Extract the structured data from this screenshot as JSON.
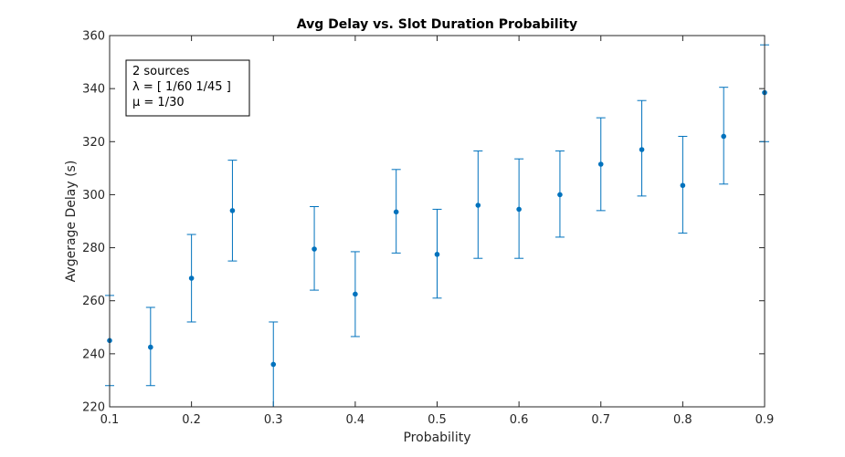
{
  "chart_data": {
    "type": "scatter",
    "title": "Avg Delay vs. Slot Duration Probability",
    "xlabel": "Probability",
    "ylabel": "Avgerage Delay (s)",
    "xlim": [
      0.1,
      0.9
    ],
    "ylim": [
      220,
      360
    ],
    "x_ticks": [
      0.1,
      0.2,
      0.3,
      0.4,
      0.5,
      0.6,
      0.7,
      0.8,
      0.9
    ],
    "x_tick_labels": [
      "0.1",
      "0.2",
      "0.3",
      "0.4",
      "0.5",
      "0.6",
      "0.7",
      "0.8",
      "0.9"
    ],
    "y_ticks": [
      220,
      240,
      260,
      280,
      300,
      320,
      340,
      360
    ],
    "y_tick_labels": [
      "220",
      "240",
      "260",
      "280",
      "300",
      "320",
      "340",
      "360"
    ],
    "grid": false,
    "legend_placement": "top-left",
    "annotation_lines": [
      "2 sources",
      "λ = [ 1/60 1/45 ]",
      "μ = 1/30"
    ],
    "marker_color": "#0072BD",
    "points": [
      {
        "x": 0.1,
        "y": 245.0,
        "lower": 228.0,
        "upper": 262.0
      },
      {
        "x": 0.15,
        "y": 242.5,
        "lower": 228.0,
        "upper": 257.5
      },
      {
        "x": 0.2,
        "y": 268.5,
        "lower": 252.0,
        "upper": 285.0
      },
      {
        "x": 0.25,
        "y": 294.0,
        "lower": 275.0,
        "upper": 313.0
      },
      {
        "x": 0.3,
        "y": 236.0,
        "lower": 220.0,
        "upper": 252.0
      },
      {
        "x": 0.35,
        "y": 279.5,
        "lower": 264.0,
        "upper": 295.5
      },
      {
        "x": 0.4,
        "y": 262.5,
        "lower": 246.5,
        "upper": 278.5
      },
      {
        "x": 0.45,
        "y": 293.5,
        "lower": 278.0,
        "upper": 309.5
      },
      {
        "x": 0.5,
        "y": 277.5,
        "lower": 261.0,
        "upper": 294.5
      },
      {
        "x": 0.55,
        "y": 296.0,
        "lower": 276.0,
        "upper": 316.5
      },
      {
        "x": 0.6,
        "y": 294.5,
        "lower": 276.0,
        "upper": 313.5
      },
      {
        "x": 0.65,
        "y": 300.0,
        "lower": 284.0,
        "upper": 316.5
      },
      {
        "x": 0.7,
        "y": 311.5,
        "lower": 294.0,
        "upper": 329.0
      },
      {
        "x": 0.75,
        "y": 317.0,
        "lower": 299.5,
        "upper": 335.5
      },
      {
        "x": 0.8,
        "y": 303.5,
        "lower": 285.5,
        "upper": 322.0
      },
      {
        "x": 0.85,
        "y": 322.0,
        "lower": 304.0,
        "upper": 340.5
      },
      {
        "x": 0.9,
        "y": 338.5,
        "lower": 320.0,
        "upper": 356.5
      }
    ]
  }
}
